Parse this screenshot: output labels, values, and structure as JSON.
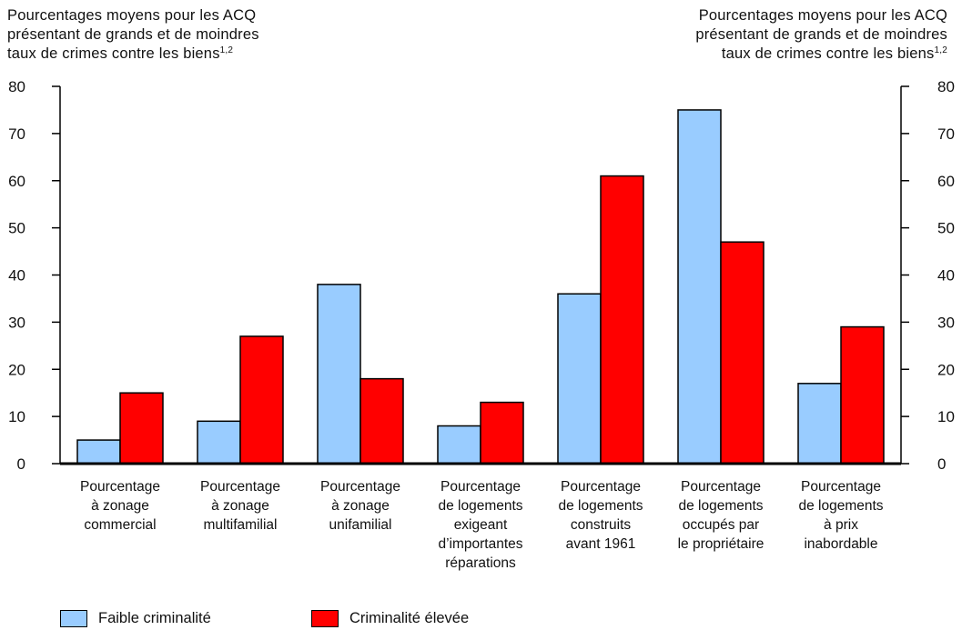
{
  "chart_data": {
    "type": "bar",
    "ylabel_left": {
      "lines": [
        "Pourcentages moyens pour les ACQ",
        "présentant de grands et de moindres",
        "taux de crimes contre les biens"
      ],
      "superscript": "1,2"
    },
    "ylabel_right": {
      "lines": [
        "Pourcentages moyens pour les ACQ",
        "présentant de grands et de moindres",
        "taux de crimes contre les biens"
      ],
      "superscript": "1,2"
    },
    "ylim": [
      0,
      80
    ],
    "yticks": [
      "0",
      "10",
      "20",
      "30",
      "40",
      "50",
      "60",
      "70",
      "80"
    ],
    "categories": [
      [
        "Pourcentage",
        "à zonage",
        "commercial"
      ],
      [
        "Pourcentage",
        "à zonage",
        "multifamilial"
      ],
      [
        "Pourcentage",
        "à zonage",
        "unifamilial"
      ],
      [
        "Pourcentage",
        "de logements",
        "exigeant",
        "d’importantes",
        "réparations"
      ],
      [
        "Pourcentage",
        "de logements",
        "construits",
        "avant 1961"
      ],
      [
        "Pourcentage",
        "de logements",
        "occupés par",
        "le propriétaire"
      ],
      [
        "Pourcentage",
        "de logements",
        "à prix",
        "inabordable"
      ]
    ],
    "series": [
      {
        "name": "Faible criminalité",
        "color": "#99ccff",
        "values": [
          5,
          9,
          38,
          8,
          36,
          75,
          17
        ]
      },
      {
        "name": "Criminalité élevée",
        "color": "#ff0000",
        "values": [
          15,
          27,
          18,
          13,
          61,
          47,
          29
        ]
      }
    ],
    "grid": false,
    "legend_position": "bottom-left"
  }
}
